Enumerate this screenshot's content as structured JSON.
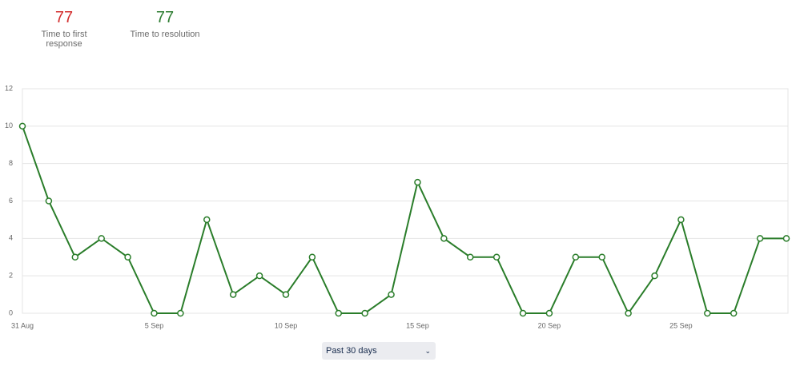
{
  "stats": [
    {
      "value": 77,
      "label": "Time to first response",
      "color": "#d32f2f"
    },
    {
      "value": 77,
      "label": "Time to resolution",
      "color": "#2e7d32"
    }
  ],
  "filter": "Past 30 days",
  "chart_data": {
    "type": "line",
    "categories": [
      "31 Aug",
      null,
      null,
      null,
      null,
      "5 Sep",
      null,
      null,
      null,
      null,
      "10 Sep",
      null,
      null,
      null,
      null,
      "15 Sep",
      null,
      null,
      null,
      null,
      "20 Sep",
      null,
      null,
      null,
      null,
      "25 Sep",
      null,
      null,
      null,
      null
    ],
    "values": [
      10,
      6,
      3,
      4,
      3,
      0,
      0,
      5,
      1,
      2,
      1,
      3,
      0,
      0,
      1,
      7,
      4,
      3,
      3,
      0,
      0,
      3,
      3,
      0,
      2,
      5,
      0,
      0,
      4,
      4
    ],
    "color": "#2a7d2a",
    "ylim": [
      0,
      12
    ],
    "yticks": [
      0,
      2,
      4,
      6,
      8,
      10,
      12
    ],
    "grid": true
  }
}
